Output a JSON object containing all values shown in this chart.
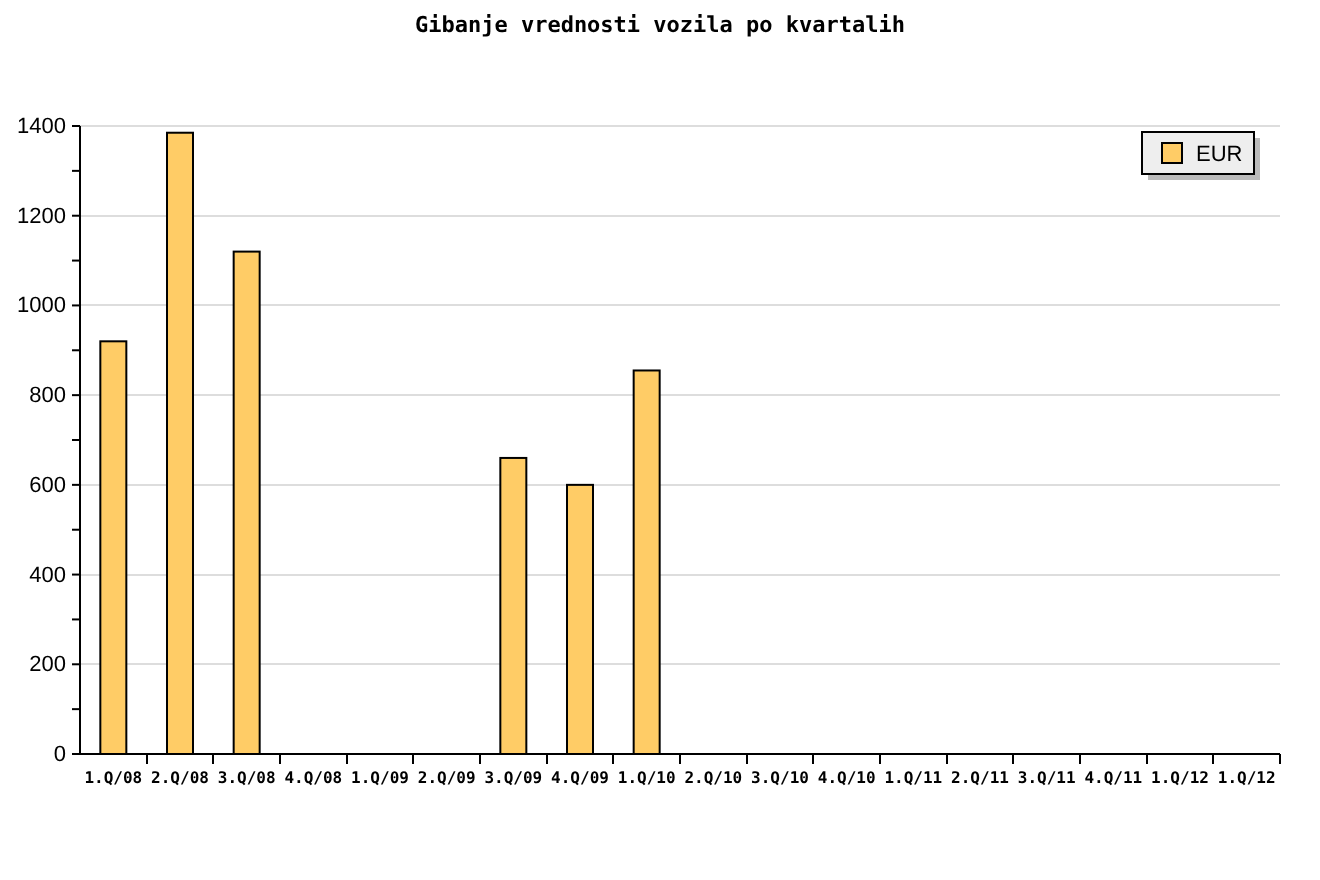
{
  "chart_data": {
    "type": "bar",
    "title": "Gibanje vrednosti vozila po kvartalih",
    "categories": [
      "1.Q/08",
      "2.Q/08",
      "3.Q/08",
      "4.Q/08",
      "1.Q/09",
      "2.Q/09",
      "3.Q/09",
      "4.Q/09",
      "1.Q/10",
      "2.Q/10",
      "3.Q/10",
      "4.Q/10",
      "1.Q/11",
      "2.Q/11",
      "3.Q/11",
      "4.Q/11",
      "1.Q/12",
      "1.Q/12"
    ],
    "series": [
      {
        "name": "EUR",
        "color": "#ffcc66",
        "values": [
          920,
          1385,
          1120,
          null,
          null,
          null,
          660,
          600,
          855,
          null,
          null,
          null,
          null,
          null,
          null,
          null,
          null,
          null
        ]
      }
    ],
    "ylim": [
      0,
      1400
    ],
    "yticks": [
      0,
      {
        "value": 100,
        "label": null
      },
      200,
      {
        "value": 300,
        "label": null
      },
      400,
      {
        "value": 500,
        "label": null
      },
      600,
      {
        "value": 700,
        "label": null
      },
      800,
      {
        "value": 900,
        "label": null
      },
      1000,
      {
        "value": 1100,
        "label": null
      },
      1200,
      {
        "value": 1300,
        "label": null
      },
      1400
    ],
    "grid": "y",
    "legend": "top right"
  }
}
